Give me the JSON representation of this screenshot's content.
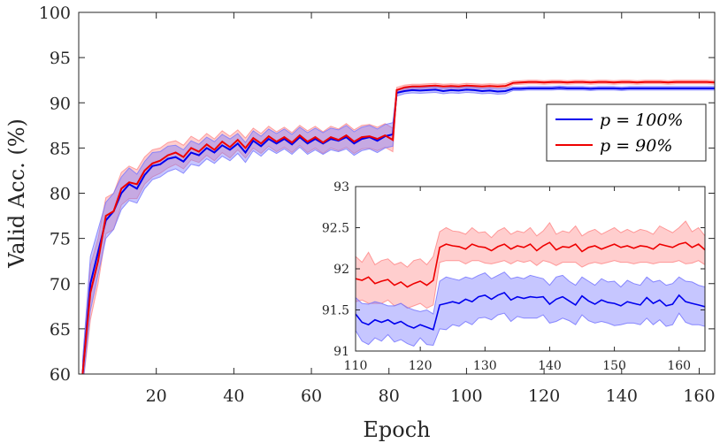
{
  "chart_data": {
    "type": "line",
    "xlabel": "Epoch",
    "ylabel": "Valid Acc. (%)",
    "xlim": [
      0,
      164
    ],
    "ylim": [
      60,
      100
    ],
    "xticks": [
      20,
      40,
      60,
      80,
      100,
      120,
      140,
      160
    ],
    "yticks": [
      60,
      65,
      70,
      75,
      80,
      85,
      90,
      95,
      100
    ],
    "legend": {
      "placement": "right",
      "entries": [
        {
          "label": "p = 100%",
          "color": "#0000ee"
        },
        {
          "label": "p = 90%",
          "color": "#ee0000"
        }
      ]
    },
    "series": [
      {
        "name": "p = 100%",
        "color": "#0000ee",
        "band_color": "#7777ff",
        "x": [
          1,
          3,
          5,
          7,
          9,
          11,
          13,
          15,
          17,
          19,
          21,
          23,
          25,
          27,
          29,
          31,
          33,
          35,
          37,
          39,
          41,
          43,
          45,
          47,
          49,
          51,
          53,
          55,
          57,
          59,
          61,
          63,
          65,
          67,
          69,
          71,
          73,
          75,
          77,
          79,
          81,
          82,
          84,
          86,
          88,
          90,
          92,
          94,
          96,
          98,
          100,
          102,
          104,
          106,
          108,
          110,
          112,
          114,
          116,
          118,
          120,
          122,
          124,
          126,
          128,
          130,
          132,
          134,
          136,
          138,
          140,
          142,
          144,
          146,
          148,
          150,
          152,
          154,
          156,
          158,
          160,
          162,
          164
        ],
        "mean": [
          60,
          70,
          73.5,
          77,
          78,
          80,
          81,
          80.5,
          82,
          83,
          83.2,
          83.8,
          84,
          83.5,
          84.5,
          84.2,
          85,
          84.5,
          85.3,
          84.8,
          85.5,
          84.5,
          85.8,
          85.2,
          86,
          85.5,
          86,
          85.4,
          86.2,
          85.5,
          86,
          85.5,
          86,
          85.8,
          86.2,
          85.5,
          86,
          86.2,
          85.8,
          86.3,
          86.5,
          91.1,
          91.3,
          91.4,
          91.35,
          91.4,
          91.45,
          91.3,
          91.4,
          91.35,
          91.45,
          91.4,
          91.3,
          91.35,
          91.25,
          91.3,
          91.55,
          91.55,
          91.6,
          91.6,
          91.6,
          91.6,
          91.65,
          91.6,
          91.6,
          91.6,
          91.55,
          91.6,
          91.6,
          91.6,
          91.55,
          91.6,
          91.6,
          91.6,
          91.6,
          91.6,
          91.6,
          91.6,
          91.6,
          91.6,
          91.6,
          91.6,
          91.6
        ],
        "spread": [
          1.5,
          3,
          2.5,
          2,
          2,
          1.8,
          1.8,
          1.6,
          1.5,
          1.5,
          1.4,
          1.4,
          1.3,
          1.3,
          1.3,
          1.2,
          1.2,
          1.2,
          1.2,
          1.2,
          1.1,
          1.1,
          1.1,
          1.1,
          1.1,
          1.1,
          1.1,
          1.1,
          1.1,
          1.2,
          1.2,
          1.2,
          1.2,
          1.2,
          1.3,
          1.3,
          1.3,
          1.3,
          1.3,
          1.3,
          1.3,
          0.35,
          0.3,
          0.3,
          0.3,
          0.3,
          0.3,
          0.3,
          0.3,
          0.3,
          0.3,
          0.3,
          0.3,
          0.3,
          0.3,
          0.3,
          0.2,
          0.2,
          0.2,
          0.2,
          0.2,
          0.2,
          0.2,
          0.2,
          0.2,
          0.2,
          0.2,
          0.2,
          0.2,
          0.2,
          0.2,
          0.2,
          0.2,
          0.2,
          0.2,
          0.2,
          0.2,
          0.2,
          0.2,
          0.2,
          0.2,
          0.2,
          0.2
        ]
      },
      {
        "name": "p = 90%",
        "color": "#ee0000",
        "band_color": "#ff8a8a",
        "x": [
          1,
          3,
          5,
          7,
          9,
          11,
          13,
          15,
          17,
          19,
          21,
          23,
          25,
          27,
          29,
          31,
          33,
          35,
          37,
          39,
          41,
          43,
          45,
          47,
          49,
          51,
          53,
          55,
          57,
          59,
          61,
          63,
          65,
          67,
          69,
          71,
          73,
          75,
          77,
          79,
          81,
          82,
          84,
          86,
          88,
          90,
          92,
          94,
          96,
          98,
          100,
          102,
          104,
          106,
          108,
          110,
          112,
          114,
          116,
          118,
          120,
          122,
          124,
          126,
          128,
          130,
          132,
          134,
          136,
          138,
          140,
          142,
          144,
          146,
          148,
          150,
          152,
          154,
          156,
          158,
          160,
          162,
          164
        ],
        "mean": [
          60,
          69,
          72.5,
          77.5,
          78,
          80.5,
          81.2,
          81,
          82.5,
          83.3,
          83.6,
          84.2,
          84.5,
          84,
          85,
          84.6,
          85.4,
          84.8,
          85.7,
          85.1,
          85.9,
          85,
          86.1,
          85.5,
          86.3,
          85.7,
          86.2,
          85.6,
          86.4,
          85.7,
          86.2,
          85.6,
          86.2,
          85.9,
          86.4,
          85.7,
          86.2,
          86.3,
          86,
          86.4,
          85.9,
          91.4,
          91.7,
          91.8,
          91.8,
          91.85,
          91.9,
          91.8,
          91.85,
          91.8,
          91.9,
          91.85,
          91.8,
          91.85,
          91.8,
          91.85,
          92.2,
          92.25,
          92.3,
          92.3,
          92.25,
          92.3,
          92.3,
          92.25,
          92.3,
          92.3,
          92.25,
          92.3,
          92.3,
          92.25,
          92.3,
          92.3,
          92.25,
          92.3,
          92.3,
          92.3,
          92.25,
          92.3,
          92.3,
          92.3,
          92.3,
          92.3,
          92.25
        ],
        "spread": [
          1.5,
          3,
          2.5,
          2,
          2,
          1.8,
          1.8,
          1.6,
          1.5,
          1.5,
          1.4,
          1.4,
          1.3,
          1.3,
          1.3,
          1.2,
          1.2,
          1.2,
          1.2,
          1.2,
          1.1,
          1.1,
          1.1,
          1.1,
          1.1,
          1.1,
          1.1,
          1.1,
          1.1,
          1.2,
          1.2,
          1.2,
          1.2,
          1.2,
          1.3,
          1.3,
          1.3,
          1.3,
          1.3,
          1.3,
          1.3,
          0.3,
          0.25,
          0.25,
          0.25,
          0.25,
          0.25,
          0.25,
          0.25,
          0.25,
          0.25,
          0.25,
          0.25,
          0.25,
          0.25,
          0.25,
          0.2,
          0.2,
          0.2,
          0.2,
          0.2,
          0.2,
          0.2,
          0.2,
          0.2,
          0.2,
          0.2,
          0.2,
          0.2,
          0.2,
          0.2,
          0.2,
          0.2,
          0.2,
          0.2,
          0.2,
          0.2,
          0.2,
          0.2,
          0.2,
          0.2,
          0.2,
          0.2
        ]
      }
    ],
    "inset": {
      "xlim": [
        110,
        164
      ],
      "ylim": [
        91,
        93
      ],
      "xticks": [
        110,
        120,
        130,
        140,
        150,
        160
      ],
      "yticks": [
        91,
        91.5,
        92,
        92.5,
        93
      ],
      "ytick_labels": [
        "91",
        "91.5",
        "92",
        "92.5",
        "93"
      ],
      "series": [
        {
          "name": "p = 100%",
          "x": [
            110,
            111,
            112,
            113,
            114,
            115,
            116,
            117,
            118,
            119,
            120,
            121,
            122,
            123,
            124,
            125,
            126,
            127,
            128,
            129,
            130,
            131,
            132,
            133,
            134,
            135,
            136,
            137,
            138,
            139,
            140,
            141,
            142,
            143,
            144,
            145,
            146,
            147,
            148,
            149,
            150,
            151,
            152,
            153,
            154,
            155,
            156,
            157,
            158,
            159,
            160,
            161,
            162,
            163,
            164
          ],
          "mean": [
            91.45,
            91.35,
            91.32,
            91.38,
            91.35,
            91.38,
            91.33,
            91.36,
            91.31,
            91.28,
            91.32,
            91.29,
            91.26,
            91.56,
            91.58,
            91.6,
            91.58,
            91.63,
            91.6,
            91.66,
            91.68,
            91.63,
            91.68,
            91.71,
            91.62,
            91.66,
            91.64,
            91.66,
            91.65,
            91.66,
            91.57,
            91.63,
            91.66,
            91.61,
            91.56,
            91.67,
            91.61,
            91.57,
            91.62,
            91.59,
            91.58,
            91.55,
            91.6,
            91.58,
            91.56,
            91.65,
            91.58,
            91.62,
            91.55,
            91.57,
            91.68,
            91.6,
            91.58,
            91.56,
            91.54
          ],
          "upper": [
            91.65,
            91.58,
            91.57,
            91.6,
            91.58,
            91.55,
            91.55,
            91.58,
            91.53,
            91.5,
            91.48,
            91.5,
            91.45,
            91.85,
            91.9,
            91.88,
            91.86,
            91.9,
            91.88,
            91.92,
            91.95,
            91.88,
            91.92,
            91.96,
            91.88,
            91.9,
            91.88,
            91.92,
            91.9,
            91.88,
            91.8,
            91.9,
            91.92,
            91.85,
            91.8,
            91.9,
            91.85,
            91.8,
            91.88,
            91.84,
            91.85,
            91.78,
            91.86,
            91.82,
            91.8,
            91.9,
            91.84,
            91.86,
            91.8,
            91.82,
            91.9,
            91.85,
            91.84,
            91.8,
            91.78
          ],
          "lower": [
            91.25,
            91.12,
            91.08,
            91.16,
            91.12,
            91.2,
            91.11,
            91.14,
            91.09,
            91.06,
            91.16,
            91.08,
            91.07,
            91.27,
            91.26,
            91.32,
            91.3,
            91.36,
            91.32,
            91.4,
            91.41,
            91.38,
            91.44,
            91.46,
            91.36,
            91.42,
            91.4,
            91.4,
            91.4,
            91.44,
            91.34,
            91.36,
            91.4,
            91.37,
            91.32,
            91.44,
            91.37,
            91.34,
            91.36,
            91.34,
            91.31,
            91.32,
            91.34,
            91.34,
            91.32,
            91.4,
            91.32,
            91.38,
            91.3,
            91.32,
            91.46,
            91.35,
            91.32,
            91.32,
            91.3
          ]
        },
        {
          "name": "p = 90%",
          "x": [
            110,
            111,
            112,
            113,
            114,
            115,
            116,
            117,
            118,
            119,
            120,
            121,
            122,
            123,
            124,
            125,
            126,
            127,
            128,
            129,
            130,
            131,
            132,
            133,
            134,
            135,
            136,
            137,
            138,
            139,
            140,
            141,
            142,
            143,
            144,
            145,
            146,
            147,
            148,
            149,
            150,
            151,
            152,
            153,
            154,
            155,
            156,
            157,
            158,
            159,
            160,
            161,
            162,
            163,
            164
          ],
          "mean": [
            91.88,
            91.86,
            91.9,
            91.82,
            91.85,
            91.87,
            91.8,
            91.84,
            91.78,
            91.82,
            91.85,
            91.8,
            91.86,
            92.26,
            92.3,
            92.28,
            92.27,
            92.24,
            92.3,
            92.27,
            92.26,
            92.22,
            92.27,
            92.3,
            92.24,
            92.28,
            92.26,
            92.3,
            92.22,
            92.28,
            92.32,
            92.23,
            92.27,
            92.26,
            92.3,
            92.21,
            92.26,
            92.28,
            92.24,
            92.27,
            92.3,
            92.26,
            92.28,
            92.25,
            92.28,
            92.27,
            92.24,
            92.3,
            92.28,
            92.26,
            92.3,
            92.32,
            92.26,
            92.3,
            92.23
          ],
          "upper": [
            92.15,
            92.08,
            92.2,
            92.05,
            92.1,
            92.12,
            92.05,
            92.08,
            92.02,
            92.1,
            92.12,
            92.05,
            92.15,
            92.45,
            92.5,
            92.46,
            92.45,
            92.42,
            92.5,
            92.44,
            92.45,
            92.38,
            92.46,
            92.5,
            92.42,
            92.46,
            92.44,
            92.5,
            92.4,
            92.46,
            92.56,
            92.42,
            92.46,
            92.44,
            92.52,
            92.4,
            92.45,
            92.48,
            92.42,
            92.46,
            92.5,
            92.44,
            92.48,
            92.44,
            92.48,
            92.46,
            92.42,
            92.52,
            92.48,
            92.44,
            92.5,
            92.58,
            92.45,
            92.5,
            92.4
          ],
          "lower": [
            91.6,
            91.62,
            91.58,
            91.58,
            91.58,
            91.62,
            91.55,
            91.58,
            91.52,
            91.55,
            91.58,
            91.52,
            91.56,
            92.08,
            92.1,
            92.1,
            92.1,
            92.06,
            92.1,
            92.1,
            92.07,
            92.06,
            92.08,
            92.1,
            92.06,
            92.1,
            92.08,
            92.1,
            92.04,
            92.1,
            92.08,
            92.04,
            92.08,
            92.08,
            92.08,
            92.02,
            92.06,
            92.08,
            92.06,
            92.08,
            92.1,
            92.08,
            92.08,
            92.06,
            92.08,
            92.08,
            92.06,
            92.08,
            92.08,
            92.08,
            92.1,
            92.06,
            92.07,
            92.1,
            92.05
          ]
        }
      ]
    }
  }
}
